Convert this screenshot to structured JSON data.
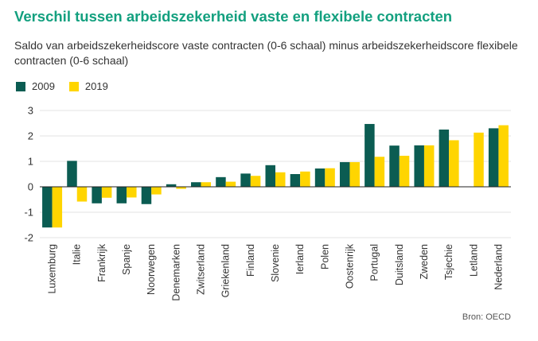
{
  "title": "Verschil tussen arbeidszekerheid vaste en flexibele contracten",
  "subtitle": "Saldo van arbeidszekerheidscore vaste contracten (0-6 schaal) minus arbeidszekerheidscore flexibele contracten (0-6 schaal)",
  "source": "Bron: OECD",
  "colors": {
    "s2009": "#0b5c52",
    "s2019": "#ffd500",
    "grid": "#e3e3e3",
    "axis": "#222222",
    "text": "#333333"
  },
  "chart_data": {
    "type": "bar",
    "title": "Verschil tussen arbeidszekerheid vaste en flexibele contracten",
    "xlabel": "",
    "ylabel": "",
    "ylim": [
      -2,
      3
    ],
    "yticks": [
      3,
      2,
      1,
      0,
      -1,
      -2
    ],
    "grid": true,
    "legend_position": "top-left",
    "categories": [
      "Luxemburg",
      "Italie",
      "Frankrijk",
      "Spanje",
      "Noorwegen",
      "Denemarken",
      "Zwitserland",
      "Griekenland",
      "Finland",
      "Slovenie",
      "Ierland",
      "Polen",
      "Oostenrijk",
      "Portugal",
      "Duitsland",
      "Zweden",
      "Tsjechie",
      "Letland",
      "Nederland"
    ],
    "series": [
      {
        "name": "2009",
        "values": [
          -1.6,
          1.02,
          -0.65,
          -0.65,
          -0.68,
          0.1,
          0.18,
          0.38,
          0.52,
          0.85,
          0.5,
          0.72,
          0.97,
          2.47,
          1.62,
          1.63,
          2.25,
          null,
          2.3
        ]
      },
      {
        "name": "2019",
        "values": [
          -1.6,
          -0.58,
          -0.43,
          -0.42,
          -0.3,
          -0.08,
          0.18,
          0.2,
          0.43,
          0.57,
          0.6,
          0.73,
          0.97,
          1.18,
          1.22,
          1.63,
          1.83,
          2.13,
          2.42
        ]
      }
    ]
  }
}
